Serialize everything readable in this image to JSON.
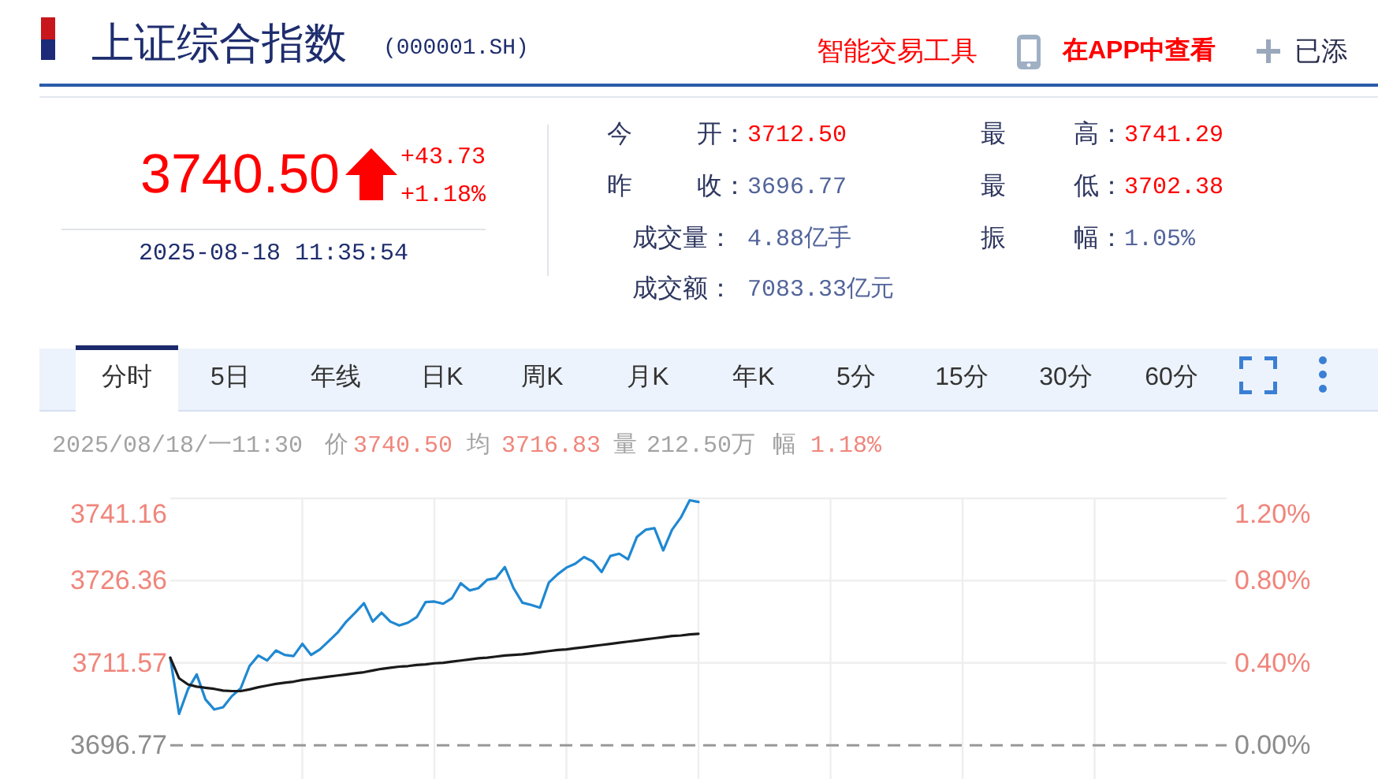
{
  "chart_data": [
    {
      "type": "other",
      "title": "上证综合指数",
      "subtitle": "(000001.SH)",
      "annotations": [
        "智能交易工具",
        "在APP中查看",
        "已添",
        "3740.50",
        "+43.73",
        "+1.18%",
        "2025-08-18 11:35:54",
        "今 开：",
        "3712.50",
        "昨 收：",
        "3696.77",
        "成交量：",
        "4.88亿手",
        "成交额：",
        "7083.33亿元",
        "最 高：",
        "3741.29",
        "最 低：",
        "3702.38",
        "振 幅：",
        "1.05%",
        "分时",
        "5日",
        "年线",
        "日K",
        "周K",
        "月K",
        "年K",
        "5分",
        "15分",
        "30分",
        "60分"
      ]
    },
    {
      "type": "line",
      "annotations": [
        "2025/08/18/一11:30",
        "价",
        "3740.50",
        "均",
        "3716.83",
        "量",
        "212.50万",
        "幅",
        "1.18%"
      ],
      "categories": [
        null,
        null,
        null,
        null,
        null,
        null,
        null,
        null,
        null,
        null,
        null,
        null,
        null,
        null,
        null,
        null,
        null,
        null,
        null,
        null,
        null,
        null,
        null,
        null,
        null,
        null,
        null,
        null,
        null,
        null,
        null,
        null,
        null,
        null,
        null,
        null,
        null,
        null,
        null,
        null,
        null,
        null,
        null,
        null,
        null,
        null,
        null,
        null,
        null,
        null,
        null,
        null,
        null,
        null,
        null,
        null,
        null,
        null,
        null,
        null,
        null,
        null,
        null,
        null,
        null,
        null,
        null,
        null,
        null,
        null,
        null,
        null,
        null,
        null,
        null,
        null,
        null,
        null,
        null,
        null,
        null,
        null,
        null,
        null,
        null,
        null,
        null,
        null,
        null,
        null,
        null,
        null,
        null,
        null,
        null,
        null,
        null,
        null,
        null,
        null,
        null,
        null,
        null,
        null,
        null,
        null,
        null,
        null,
        null,
        null,
        null,
        null,
        null,
        null,
        null,
        null,
        null,
        null,
        null,
        null,
        null
      ],
      "series": [
        {
          "color": "#1f88d2",
          "values": [
            3712.5,
            3702.4,
            3706.8,
            3709.5,
            3705.0,
            3703.2,
            3703.6,
            3705.6,
            3707.0,
            3711.0,
            3712.9,
            3712.0,
            3713.8,
            3713.0,
            3712.8,
            3715.0,
            3713.0,
            3714.0,
            3715.5,
            3717.0,
            3719.0,
            3720.6,
            3722.3,
            3719.0,
            3720.6,
            3719.0,
            3718.3,
            3718.8,
            3719.8,
            3722.5,
            3722.6,
            3722.2,
            3723.2,
            3725.9,
            3724.6,
            3725.0,
            3726.5,
            3726.8,
            3728.8,
            3725.0,
            3722.4,
            3722.0,
            3721.5,
            3726.0,
            3727.5,
            3728.7,
            3729.4,
            3730.6,
            3729.8,
            3727.9,
            3730.8,
            3731.2,
            3730.2,
            3734.2,
            3735.5,
            3735.8,
            3731.8,
            3735.5,
            3737.7,
            3740.8,
            3740.5,
            null,
            null,
            null,
            null,
            null,
            null,
            null,
            null,
            null,
            null,
            null,
            null,
            null,
            null,
            null,
            null,
            null,
            null,
            null,
            null,
            null,
            null,
            null,
            null,
            null,
            null,
            null,
            null,
            null,
            null,
            null,
            null,
            null,
            null,
            null,
            null,
            null,
            null,
            null,
            null,
            null,
            null,
            null,
            null,
            null,
            null,
            null,
            null,
            null,
            null,
            null,
            null,
            null,
            null,
            null,
            null,
            null,
            null,
            null,
            null
          ]
        },
        {
          "color": "#1a1a1a",
          "values": [
            3712.5,
            3708.8,
            3707.7,
            3707.3,
            3707.1,
            3706.9,
            3706.6,
            3706.5,
            3706.5,
            3706.8,
            3707.2,
            3707.5,
            3707.8,
            3708.0,
            3708.2,
            3708.5,
            3708.7,
            3708.9,
            3709.1,
            3709.3,
            3709.5,
            3709.7,
            3709.9,
            3710.2,
            3710.5,
            3710.7,
            3710.9,
            3711.0,
            3711.2,
            3711.3,
            3711.5,
            3711.6,
            3711.8,
            3712.0,
            3712.2,
            3712.4,
            3712.5,
            3712.7,
            3712.9,
            3713.0,
            3713.1,
            3713.3,
            3713.5,
            3713.7,
            3713.9,
            3714.0,
            3714.2,
            3714.4,
            3714.6,
            3714.8,
            3715.0,
            3715.2,
            3715.4,
            3715.6,
            3715.8,
            3716.0,
            3716.2,
            3716.4,
            3716.5,
            3716.7,
            3716.8,
            null,
            null,
            null,
            null,
            null,
            null,
            null,
            null,
            null,
            null,
            null,
            null,
            null,
            null,
            null,
            null,
            null,
            null,
            null,
            null,
            null,
            null,
            null,
            null,
            null,
            null,
            null,
            null,
            null,
            null,
            null,
            null,
            null,
            null,
            null,
            null,
            null,
            null,
            null,
            null,
            null,
            null,
            null,
            null,
            null,
            null,
            null,
            null,
            null,
            null,
            null,
            null,
            null,
            null,
            null,
            null,
            null,
            null,
            null,
            null
          ]
        }
      ],
      "ylim": [
        3690.7,
        3741.16
      ],
      "yticks": [
        3696.77,
        3711.57,
        3726.36,
        3741.16
      ],
      "y2lim": [
        -0.163,
        1.2
      ],
      "y2ticks": [
        {
          "value": 0,
          "label": "0.00%"
        },
        {
          "value": 0.4,
          "label": "0.40%"
        },
        {
          "value": 0.8,
          "label": "0.80%"
        },
        {
          "value": 1.2,
          "label": "1.20%"
        }
      ],
      "grid": true,
      "ref_lines": [
        {
          "axis": "y",
          "value": 3696.77,
          "color": "#999999",
          "line_style": "dashed"
        }
      ]
    }
  ]
}
